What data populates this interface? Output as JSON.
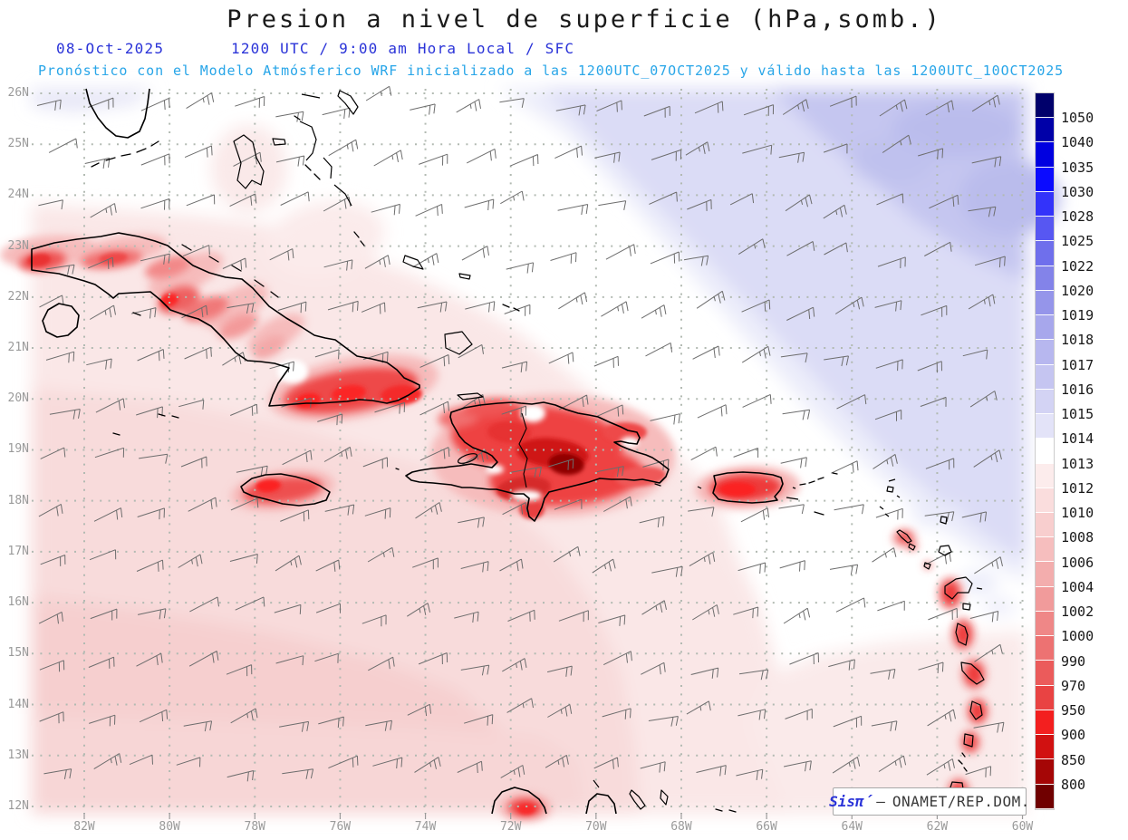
{
  "header": {
    "title": "Presion a nivel de superficie (hPa,somb.)",
    "date": "08-Oct-2025",
    "time_line": "1200 UTC / 9:00 am Hora Local / SFC",
    "forecast_line": "Pronóstico con el Modelo Atmósferico WRF inicializado a las 1200UTC_07OCT2025 y válido hasta las  1200UTC_10OCT2025"
  },
  "map": {
    "region": "Caribbean / Antilles",
    "lat_labels": [
      "26N",
      "25N",
      "24N",
      "23N",
      "22N",
      "21N",
      "20N",
      "19N",
      "18N",
      "17N",
      "16N",
      "15N",
      "14N",
      "13N",
      "12N"
    ],
    "lon_labels": [
      "82W",
      "80W",
      "78W",
      "76W",
      "74W",
      "72W",
      "70W",
      "68W",
      "66W",
      "64W",
      "62W",
      "60W"
    ]
  },
  "colorbar": {
    "unit": "hPa",
    "labels": [
      "1050",
      "1040",
      "1035",
      "1030",
      "1028",
      "1025",
      "1022",
      "1020",
      "1019",
      "1018",
      "1017",
      "1016",
      "1015",
      "1014",
      "1013",
      "1012",
      "1010",
      "1008",
      "1006",
      "1004",
      "1002",
      "1000",
      "990",
      "970",
      "950",
      "900",
      "850",
      "800"
    ],
    "colors": [
      "#00006b",
      "#0000a8",
      "#0000e0",
      "#0b0bff",
      "#3333fa",
      "#5757f2",
      "#6f6fec",
      "#8383e9",
      "#9595ea",
      "#a7a7ec",
      "#b7b7ef",
      "#c5c5f1",
      "#d3d3f4",
      "#e3e3f8",
      "#ffffff",
      "#fcecec",
      "#fadddd",
      "#f8cece",
      "#f6bebe",
      "#f3adad",
      "#f19b9b",
      "#ef8787",
      "#ed7272",
      "#eb5b5b",
      "#e94343",
      "#f31f1f",
      "#d11111",
      "#a50606",
      "#700000"
    ]
  },
  "watermark": {
    "brand": "Sisπ́",
    "separator": "–",
    "org": "ONAMET/REP.DOM."
  },
  "colors": {
    "title_text": "#1a1a1a",
    "header_blue": "#2a33d8",
    "header_cyan": "#27a5e8",
    "axis_label": "#9a9a9a",
    "grid_dots": "#b2bab2",
    "coastline": "#000000",
    "wind_barb": "#6d6d6d",
    "low_pressure_red": "#e93232",
    "high_pressure_blue": "#c5c6f0"
  }
}
